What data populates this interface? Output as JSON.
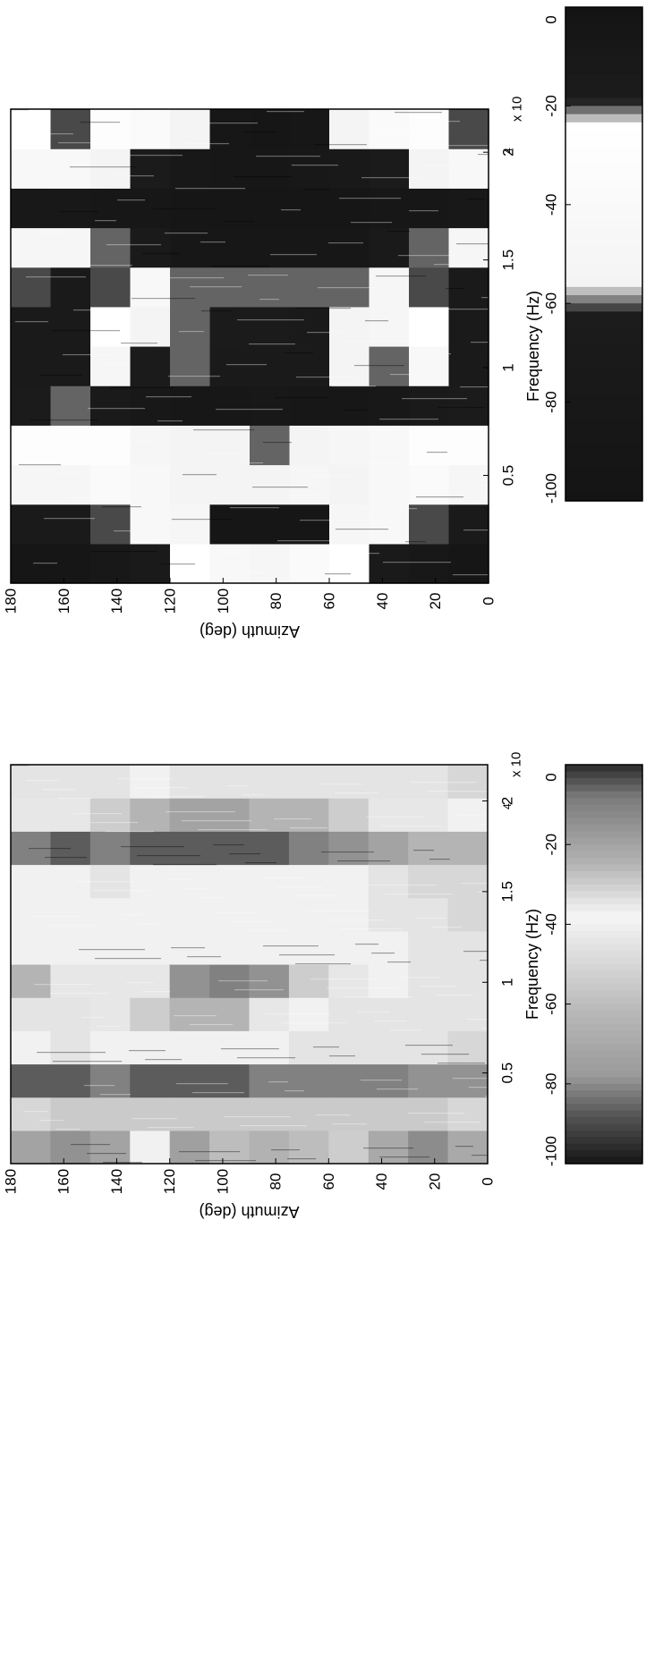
{
  "chart_data": [
    {
      "type": "heatmap",
      "panel": "top",
      "xlabel": "Frequency (Hz)",
      "ylabel": "Azimuth (deg)",
      "x_multiplier": "x 10",
      "x_multiplier_exponent": "4",
      "xlim": [
        0,
        2.2
      ],
      "ylim": [
        0,
        180
      ],
      "x_ticks": [
        0.5,
        1,
        1.5,
        2
      ],
      "x_tick_labels": [
        "0.5",
        "1",
        "1.5",
        "2"
      ],
      "y_ticks": [
        0,
        20,
        40,
        60,
        80,
        100,
        120,
        140,
        160,
        180
      ],
      "y_tick_labels": [
        "0",
        "20",
        "40",
        "60",
        "80",
        "100",
        "120",
        "140",
        "160",
        "180"
      ],
      "colorbar": {
        "range": [
          -100,
          0
        ],
        "ticks": [
          0,
          -20,
          -40,
          -60,
          -80,
          -100
        ],
        "tick_labels": [
          "0",
          "-20",
          "-40",
          "-60",
          "-80",
          "-100"
        ],
        "stops": [
          {
            "value": 0,
            "color": "#141414"
          },
          {
            "value": -19,
            "color": "#1c1c1c"
          },
          {
            "value": -24,
            "color": "#ffffff"
          },
          {
            "value": -56,
            "color": "#f4f4f4"
          },
          {
            "value": -62,
            "color": "#1c1c1c"
          },
          {
            "value": -100,
            "color": "#141414"
          }
        ]
      },
      "grid_values": [
        [
          0.95,
          0.85,
          0.5,
          0.7,
          0.35,
          0.85,
          0.85,
          0.8,
          0.5,
          0.2,
          0.55,
          0.75
        ],
        [
          0.95,
          0.85,
          0.5,
          0.7,
          0.4,
          0.85,
          0.85,
          0.85,
          0.5,
          0.2,
          0.55,
          0.8
        ],
        [
          0.9,
          0.8,
          0.6,
          0.7,
          0.3,
          0.5,
          0.75,
          0.8,
          0.4,
          0.15,
          0.45,
          0.7
        ],
        [
          0.85,
          0.55,
          0.55,
          0.5,
          0.2,
          0.35,
          0.45,
          0.55,
          0.3,
          0.15,
          0.35,
          0.6
        ],
        [
          0.75,
          0.5,
          0.45,
          0.45,
          0.15,
          0.4,
          0.4,
          0.4,
          0.15,
          0.1,
          0.2,
          0.45
        ],
        [
          0.55,
          0.95,
          0.45,
          0.45,
          0.15,
          0.3,
          0.35,
          0.4,
          0.15,
          0.1,
          0.15,
          0.15
        ],
        [
          0.5,
          0.95,
          0.45,
          0.4,
          0.2,
          0.3,
          0.35,
          0.4,
          0.15,
          0.1,
          0.15,
          0.1
        ],
        [
          0.6,
          0.95,
          0.5,
          0.45,
          0.15,
          0.3,
          0.3,
          0.4,
          0.15,
          0.1,
          0.2,
          0.15
        ],
        [
          0.75,
          0.5,
          0.45,
          0.5,
          0.15,
          0.45,
          0.45,
          0.4,
          0.15,
          0.1,
          0.25,
          0.45
        ],
        [
          0.85,
          0.55,
          0.55,
          0.55,
          0.2,
          0.4,
          0.5,
          0.5,
          0.3,
          0.15,
          0.35,
          0.6
        ],
        [
          0.9,
          0.8,
          0.6,
          0.7,
          0.3,
          0.55,
          0.75,
          0.8,
          0.4,
          0.15,
          0.45,
          0.7
        ],
        [
          0.95,
          0.85,
          0.5,
          0.7,
          0.35,
          0.85,
          0.85,
          0.85,
          0.5,
          0.2,
          0.55,
          0.8
        ]
      ]
    },
    {
      "type": "heatmap",
      "panel": "bottom",
      "xlabel": "Frequency (Hz)",
      "ylabel": "Azimuth (deg)",
      "x_multiplier": "x 10",
      "x_multiplier_exponent": "4",
      "xlim": [
        0,
        2.2
      ],
      "ylim": [
        0,
        180
      ],
      "x_ticks": [
        0.5,
        1,
        1.5,
        2
      ],
      "x_tick_labels": [
        "0.5",
        "1",
        "1.5",
        "2"
      ],
      "y_ticks": [
        0,
        20,
        40,
        60,
        80,
        100,
        120,
        140,
        160,
        180
      ],
      "y_tick_labels": [
        "0",
        "20",
        "40",
        "60",
        "80",
        "100",
        "120",
        "140",
        "160",
        "180"
      ],
      "colorbar": {
        "range": [
          -100,
          0
        ],
        "ticks": [
          0,
          -20,
          -40,
          -60,
          -80,
          -100
        ],
        "tick_labels": [
          "0",
          "-20",
          "-40",
          "-60",
          "-80",
          "-100"
        ],
        "stops": [
          {
            "value": 0,
            "color": "#2a2a2a"
          },
          {
            "value": -8,
            "color": "#7a7a7a"
          },
          {
            "value": -25,
            "color": "#b4b4b4"
          },
          {
            "value": -38,
            "color": "#f6f6f6"
          },
          {
            "value": -48,
            "color": "#dcdcdc"
          },
          {
            "value": -62,
            "color": "#b8b8b8"
          },
          {
            "value": -78,
            "color": "#9a9a9a"
          },
          {
            "value": -88,
            "color": "#555555"
          },
          {
            "value": -100,
            "color": "#161616"
          }
        ]
      },
      "grid_values": [
        [
          0.8,
          0.5,
          0.95,
          0.6,
          0.55,
          0.75,
          0.6,
          0.6,
          0.6,
          0.9,
          0.65,
          0.55
        ],
        [
          0.85,
          0.45,
          0.95,
          0.55,
          0.55,
          0.65,
          0.6,
          0.6,
          0.6,
          0.95,
          0.65,
          0.55
        ],
        [
          0.8,
          0.45,
          0.9,
          0.6,
          0.65,
          0.65,
          0.6,
          0.6,
          0.55,
          0.9,
          0.7,
          0.55
        ],
        [
          0.6,
          0.45,
          0.95,
          0.6,
          0.7,
          0.65,
          0.6,
          0.6,
          0.6,
          0.95,
          0.75,
          0.6
        ],
        [
          0.25,
          0.45,
          0.95,
          0.6,
          0.75,
          0.85,
          0.6,
          0.6,
          0.6,
          0.95,
          0.8,
          0.55
        ],
        [
          0.4,
          0.45,
          0.95,
          0.6,
          0.75,
          0.9,
          0.6,
          0.6,
          0.6,
          0.95,
          0.8,
          0.55
        ],
        [
          0.35,
          0.45,
          0.9,
          0.6,
          0.65,
          0.85,
          0.6,
          0.6,
          0.6,
          0.95,
          0.75,
          0.55
        ],
        [
          0.4,
          0.45,
          0.9,
          0.55,
          0.6,
          0.7,
          0.6,
          0.6,
          0.6,
          0.9,
          0.75,
          0.55
        ],
        [
          0.7,
          0.45,
          0.9,
          0.55,
          0.55,
          0.65,
          0.6,
          0.6,
          0.6,
          0.85,
          0.7,
          0.55
        ],
        [
          0.3,
          0.45,
          0.9,
          0.55,
          0.55,
          0.6,
          0.6,
          0.55,
          0.55,
          0.8,
          0.65,
          0.55
        ],
        [
          0.2,
          0.45,
          0.85,
          0.55,
          0.55,
          0.55,
          0.55,
          0.55,
          0.5,
          0.75,
          0.65,
          0.55
        ],
        [
          0.3,
          0.5,
          0.85,
          0.5,
          0.55,
          0.55,
          0.55,
          0.5,
          0.5,
          0.75,
          0.6,
          0.5
        ]
      ]
    }
  ]
}
